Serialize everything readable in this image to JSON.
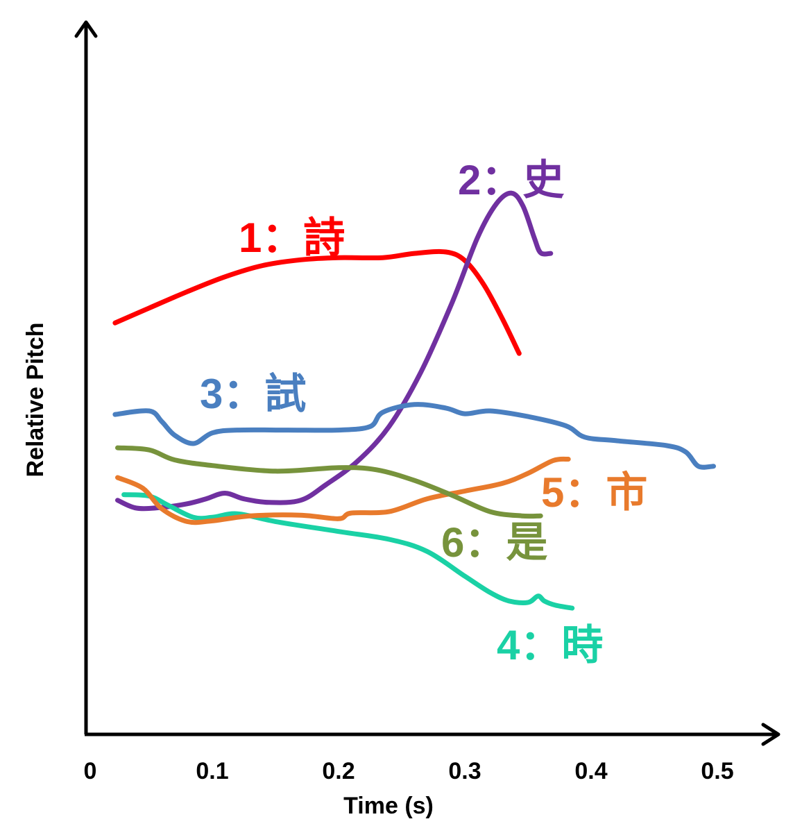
{
  "chart_data": {
    "type": "line",
    "xlabel": "Time (s)",
    "ylabel": "Relative Pitch",
    "xlim": [
      0,
      0.5
    ],
    "ylim": [
      0,
      1
    ],
    "x_ticks": [
      "0",
      "0.1",
      "0.2",
      "0.3",
      "0.4",
      "0.5"
    ],
    "grid": false,
    "legend": "labels placed next to each curve",
    "series": [
      {
        "name": "1：詩",
        "color": "#ff0000",
        "points": [
          [
            0.023,
            0.58
          ],
          [
            0.05,
            0.601
          ],
          [
            0.08,
            0.624
          ],
          [
            0.11,
            0.645
          ],
          [
            0.14,
            0.661
          ],
          [
            0.17,
            0.669
          ],
          [
            0.2,
            0.672
          ],
          [
            0.235,
            0.672
          ],
          [
            0.26,
            0.678
          ],
          [
            0.285,
            0.68
          ],
          [
            0.3,
            0.668
          ],
          [
            0.315,
            0.634
          ],
          [
            0.33,
            0.585
          ],
          [
            0.343,
            0.537
          ]
        ]
      },
      {
        "name": "2：史",
        "color": "#7030a0",
        "points": [
          [
            0.025,
            0.33
          ],
          [
            0.04,
            0.319
          ],
          [
            0.06,
            0.32
          ],
          [
            0.08,
            0.325
          ],
          [
            0.095,
            0.332
          ],
          [
            0.11,
            0.34
          ],
          [
            0.125,
            0.332
          ],
          [
            0.145,
            0.327
          ],
          [
            0.17,
            0.33
          ],
          [
            0.19,
            0.352
          ],
          [
            0.215,
            0.385
          ],
          [
            0.24,
            0.434
          ],
          [
            0.265,
            0.51
          ],
          [
            0.29,
            0.609
          ],
          [
            0.31,
            0.7
          ],
          [
            0.325,
            0.748
          ],
          [
            0.337,
            0.763
          ],
          [
            0.346,
            0.745
          ],
          [
            0.355,
            0.7
          ],
          [
            0.36,
            0.679
          ],
          [
            0.368,
            0.678
          ]
        ]
      },
      {
        "name": "3：試",
        "color": "#4a7fc0",
        "points": [
          [
            0.023,
            0.451
          ],
          [
            0.05,
            0.456
          ],
          [
            0.06,
            0.441
          ],
          [
            0.07,
            0.422
          ],
          [
            0.085,
            0.41
          ],
          [
            0.1,
            0.425
          ],
          [
            0.12,
            0.429
          ],
          [
            0.16,
            0.429
          ],
          [
            0.2,
            0.429
          ],
          [
            0.225,
            0.434
          ],
          [
            0.235,
            0.454
          ],
          [
            0.26,
            0.465
          ],
          [
            0.285,
            0.46
          ],
          [
            0.3,
            0.452
          ],
          [
            0.32,
            0.456
          ],
          [
            0.35,
            0.448
          ],
          [
            0.38,
            0.435
          ],
          [
            0.395,
            0.419
          ],
          [
            0.42,
            0.414
          ],
          [
            0.46,
            0.407
          ],
          [
            0.475,
            0.398
          ],
          [
            0.485,
            0.378
          ],
          [
            0.497,
            0.378
          ]
        ]
      },
      {
        "name": "4：時",
        "color": "#1ad1a5",
        "points": [
          [
            0.03,
            0.338
          ],
          [
            0.05,
            0.336
          ],
          [
            0.065,
            0.323
          ],
          [
            0.085,
            0.306
          ],
          [
            0.1,
            0.306
          ],
          [
            0.12,
            0.311
          ],
          [
            0.15,
            0.3
          ],
          [
            0.2,
            0.286
          ],
          [
            0.24,
            0.275
          ],
          [
            0.27,
            0.258
          ],
          [
            0.3,
            0.223
          ],
          [
            0.32,
            0.2
          ],
          [
            0.335,
            0.188
          ],
          [
            0.35,
            0.186
          ],
          [
            0.358,
            0.195
          ],
          [
            0.363,
            0.188
          ],
          [
            0.372,
            0.182
          ],
          [
            0.385,
            0.178
          ]
        ]
      },
      {
        "name": "5：市",
        "color": "#e87a2c",
        "points": [
          [
            0.025,
            0.362
          ],
          [
            0.045,
            0.347
          ],
          [
            0.06,
            0.318
          ],
          [
            0.08,
            0.3
          ],
          [
            0.1,
            0.301
          ],
          [
            0.13,
            0.308
          ],
          [
            0.17,
            0.309
          ],
          [
            0.2,
            0.304
          ],
          [
            0.21,
            0.312
          ],
          [
            0.24,
            0.314
          ],
          [
            0.27,
            0.332
          ],
          [
            0.3,
            0.343
          ],
          [
            0.33,
            0.354
          ],
          [
            0.35,
            0.368
          ],
          [
            0.37,
            0.386
          ],
          [
            0.382,
            0.388
          ]
        ]
      },
      {
        "name": "6：是",
        "color": "#77933c",
        "points": [
          [
            0.025,
            0.404
          ],
          [
            0.05,
            0.401
          ],
          [
            0.07,
            0.387
          ],
          [
            0.1,
            0.379
          ],
          [
            0.15,
            0.371
          ],
          [
            0.2,
            0.376
          ],
          [
            0.23,
            0.373
          ],
          [
            0.26,
            0.358
          ],
          [
            0.29,
            0.337
          ],
          [
            0.32,
            0.314
          ],
          [
            0.345,
            0.308
          ],
          [
            0.36,
            0.308
          ]
        ]
      }
    ]
  }
}
